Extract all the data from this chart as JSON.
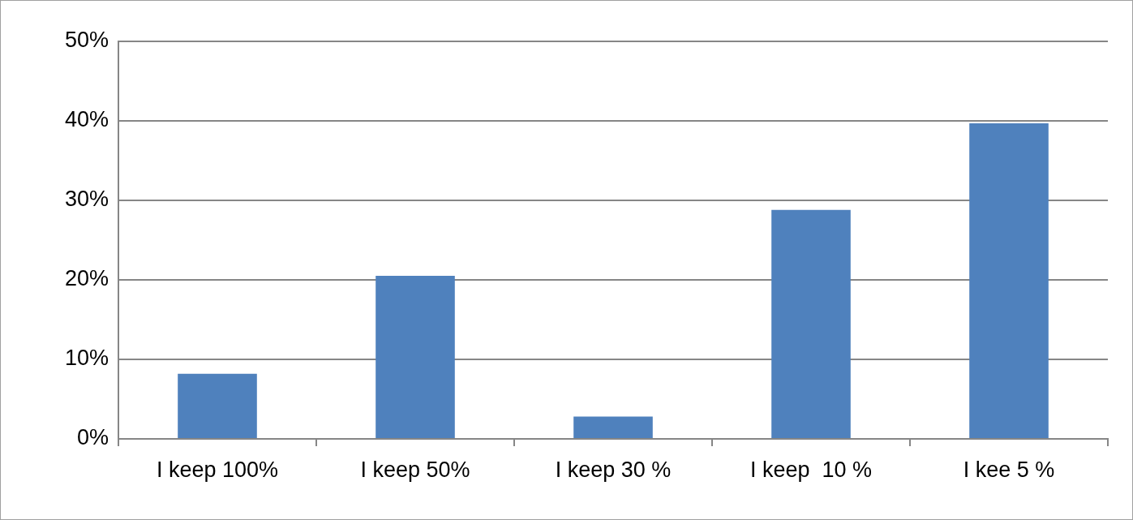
{
  "chart_data": {
    "type": "bar",
    "categories": [
      "I keep 100%",
      "I keep 50%",
      "I keep 30 %",
      "I keep  10 %",
      "I kee 5 %"
    ],
    "values": [
      8.2,
      20.5,
      2.8,
      28.8,
      39.7
    ],
    "color": "#4f81bd",
    "ylim": [
      0,
      50
    ],
    "yticks": [
      {
        "value": 0,
        "label": "0%"
      },
      {
        "value": 10,
        "label": "10%"
      },
      {
        "value": 20,
        "label": "20%"
      },
      {
        "value": 30,
        "label": "30%"
      },
      {
        "value": 40,
        "label": "40%"
      },
      {
        "value": 50,
        "label": "50%"
      }
    ],
    "grid": "y",
    "legend": false
  }
}
